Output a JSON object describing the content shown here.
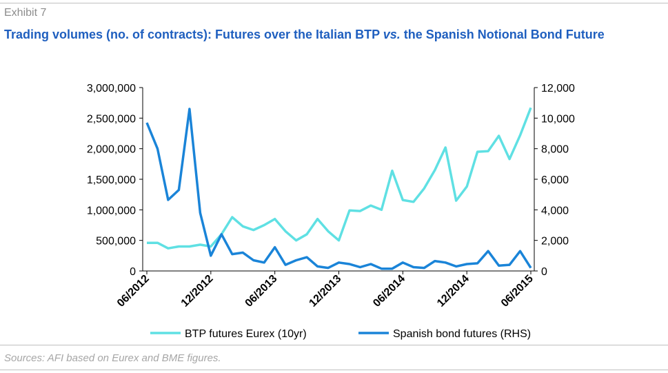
{
  "exhibit": "Exhibit 7",
  "chart_data": {
    "type": "line",
    "title": [
      "Trading volumes (no. of contracts): Futures over the Italian BTP ",
      "vs.",
      " the Spanish Notional Bond Future"
    ],
    "categories": [
      "06/2012",
      null,
      null,
      null,
      null,
      null,
      "12/2012",
      null,
      null,
      null,
      null,
      null,
      "06/2013",
      null,
      null,
      null,
      null,
      null,
      "12/2013",
      null,
      null,
      null,
      null,
      null,
      "06/2014",
      null,
      null,
      null,
      null,
      null,
      "12/2014",
      null,
      null,
      null,
      null,
      null,
      "06/2015"
    ],
    "series": [
      {
        "name": "BTP futures Eurex (10yr)",
        "color": "#5fe0e3",
        "axis": "y",
        "values": [
          460000,
          460000,
          370000,
          400000,
          400000,
          430000,
          400000,
          600000,
          880000,
          730000,
          670000,
          750000,
          850000,
          650000,
          500000,
          600000,
          850000,
          650000,
          500000,
          990000,
          980000,
          1070000,
          1000000,
          1640000,
          1160000,
          1130000,
          1350000,
          1650000,
          2020000,
          1150000,
          1380000,
          1950000,
          1960000,
          2210000,
          1830000,
          2220000,
          2670000
        ]
      },
      {
        "name": "Spanish bond futures (RHS)",
        "color": "#1a84d8",
        "axis": "y2",
        "values": [
          9700,
          8000,
          4650,
          5300,
          10600,
          3800,
          1000,
          2400,
          1100,
          1200,
          700,
          550,
          1550,
          400,
          700,
          900,
          300,
          200,
          550,
          450,
          250,
          450,
          150,
          150,
          550,
          250,
          200,
          650,
          550,
          300,
          450,
          500,
          1300,
          350,
          400,
          1300,
          200
        ]
      }
    ],
    "ylim": [
      0,
      3000000
    ],
    "yticks": [
      0,
      {
        "value": 500000,
        "label": "500,000"
      },
      {
        "value": 1000000,
        "label": "1,000,000"
      },
      {
        "value": 1500000,
        "label": "1,500,000"
      },
      {
        "value": 2000000,
        "label": "2,000,000"
      },
      {
        "value": 2500000,
        "label": "2,500,000"
      },
      {
        "value": 3000000,
        "label": "3,000,000"
      }
    ],
    "y2lim": [
      0,
      12000
    ],
    "y2ticks": [
      0,
      {
        "value": 2000,
        "label": "2,000"
      },
      {
        "value": 4000,
        "label": "4,000"
      },
      {
        "value": 6000,
        "label": "6,000"
      },
      {
        "value": 8000,
        "label": "8,000"
      },
      {
        "value": 10000,
        "label": "10,000"
      },
      {
        "value": 12000,
        "label": "12,000"
      }
    ],
    "legend": "bottom",
    "grid": false
  },
  "source": "Sources: AFI based on Eurex and BME figures."
}
